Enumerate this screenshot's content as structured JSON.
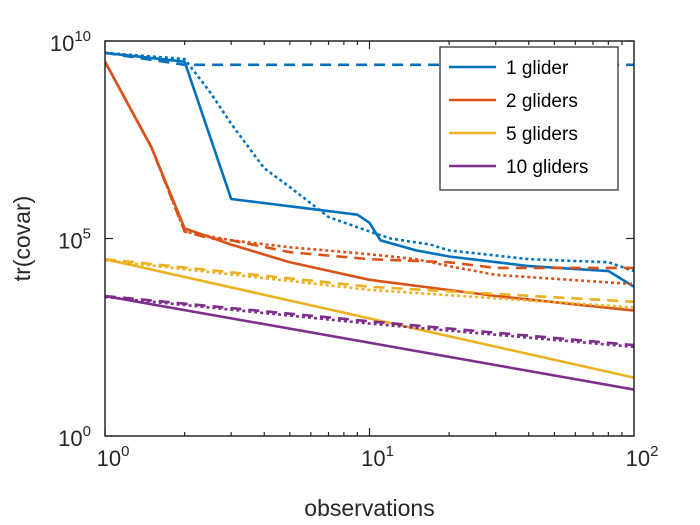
{
  "chart_data": {
    "type": "line",
    "title": "",
    "xlabel": "observations",
    "ylabel": "tr(covar)",
    "xscale": "log",
    "yscale": "log",
    "xlim": [
      1,
      100
    ],
    "ylim": [
      1,
      10000000000
    ],
    "x_ticks": [
      {
        "value": 1,
        "base": "10",
        "exp": "0"
      },
      {
        "value": 10,
        "base": "10",
        "exp": "1"
      },
      {
        "value": 100,
        "base": "10",
        "exp": "2"
      }
    ],
    "y_ticks": [
      {
        "value": 1,
        "base": "10",
        "exp": "0"
      },
      {
        "value": 100000,
        "base": "10",
        "exp": "5"
      },
      {
        "value": 10000000000,
        "base": "10",
        "exp": "10"
      }
    ],
    "grid": false,
    "legend_position": "top-right",
    "legend": [
      {
        "label": "1 glider",
        "color": "#0072BD"
      },
      {
        "label": "2 gliders",
        "color": "#D95319"
      },
      {
        "label": "5 gliders",
        "color": "#EDB120"
      },
      {
        "label": "10 gliders",
        "color": "#7E2F8E"
      }
    ],
    "series": [
      {
        "group": 0,
        "style": "solid",
        "color": "#0072BD",
        "points": [
          [
            1,
            5000000000
          ],
          [
            2,
            3000000000
          ],
          [
            3,
            1000000
          ],
          [
            9,
            400000
          ],
          [
            10,
            250000
          ],
          [
            11,
            90000
          ],
          [
            15,
            50000
          ],
          [
            20,
            35000
          ],
          [
            40,
            20000
          ],
          [
            80,
            15000
          ],
          [
            100,
            6000
          ]
        ]
      },
      {
        "group": 0,
        "style": "dash",
        "color": "#0072BD",
        "points": [
          [
            1,
            5000000000
          ],
          [
            2,
            2500000000
          ],
          [
            100,
            2500000000
          ]
        ]
      },
      {
        "group": 0,
        "style": "dot",
        "color": "#0072BD",
        "points": [
          [
            1,
            5000000000
          ],
          [
            2,
            3500000000
          ],
          [
            2.5,
            500000000
          ],
          [
            3,
            80000000
          ],
          [
            4,
            6000000
          ],
          [
            5,
            2000000
          ],
          [
            7,
            350000
          ],
          [
            10,
            150000
          ],
          [
            12,
            100000
          ],
          [
            17,
            70000
          ],
          [
            20,
            50000
          ],
          [
            40,
            30000
          ],
          [
            80,
            25000
          ],
          [
            100,
            15000
          ]
        ]
      },
      {
        "group": 1,
        "style": "solid",
        "color": "#D95319",
        "points": [
          [
            1,
            3000000000
          ],
          [
            1.5,
            20000000
          ],
          [
            2,
            180000
          ],
          [
            3,
            70000
          ],
          [
            5,
            25000
          ],
          [
            10,
            9000
          ],
          [
            30,
            3500
          ],
          [
            100,
            1500
          ]
        ]
      },
      {
        "group": 1,
        "style": "dash",
        "color": "#D95319",
        "points": [
          [
            1,
            3000000000
          ],
          [
            1.5,
            20000000
          ],
          [
            2,
            150000
          ],
          [
            2.5,
            100000
          ],
          [
            3,
            90000
          ],
          [
            5,
            45000
          ],
          [
            10,
            30000
          ],
          [
            20,
            25000
          ],
          [
            30,
            18000
          ],
          [
            100,
            18000
          ]
        ]
      },
      {
        "group": 1,
        "style": "dot",
        "color": "#D95319",
        "points": [
          [
            1,
            3000000000
          ],
          [
            1.5,
            20000000
          ],
          [
            2,
            150000
          ],
          [
            3,
            90000
          ],
          [
            5,
            60000
          ],
          [
            10,
            40000
          ],
          [
            15,
            30000
          ],
          [
            20,
            20000
          ],
          [
            30,
            12000
          ],
          [
            100,
            7000
          ]
        ]
      },
      {
        "group": 2,
        "style": "solid",
        "color": "#EDB120",
        "points": [
          [
            1,
            30000
          ],
          [
            100,
            30
          ]
        ]
      },
      {
        "group": 2,
        "style": "dash",
        "color": "#EDB120",
        "points": [
          [
            1,
            30000
          ],
          [
            10,
            6000
          ],
          [
            100,
            2500
          ]
        ]
      },
      {
        "group": 2,
        "style": "dot",
        "color": "#EDB120",
        "points": [
          [
            1,
            28000
          ],
          [
            10,
            5000
          ],
          [
            100,
            1800
          ]
        ]
      },
      {
        "group": 3,
        "style": "solid",
        "color": "#7E2F8E",
        "points": [
          [
            1,
            3500
          ],
          [
            100,
            15
          ]
        ]
      },
      {
        "group": 3,
        "style": "dash",
        "color": "#7E2F8E",
        "points": [
          [
            1,
            3500
          ],
          [
            10,
            800
          ],
          [
            100,
            200
          ]
        ]
      },
      {
        "group": 3,
        "style": "dot",
        "color": "#7E2F8E",
        "points": [
          [
            1,
            3300
          ],
          [
            10,
            700
          ],
          [
            100,
            180
          ]
        ]
      }
    ]
  }
}
